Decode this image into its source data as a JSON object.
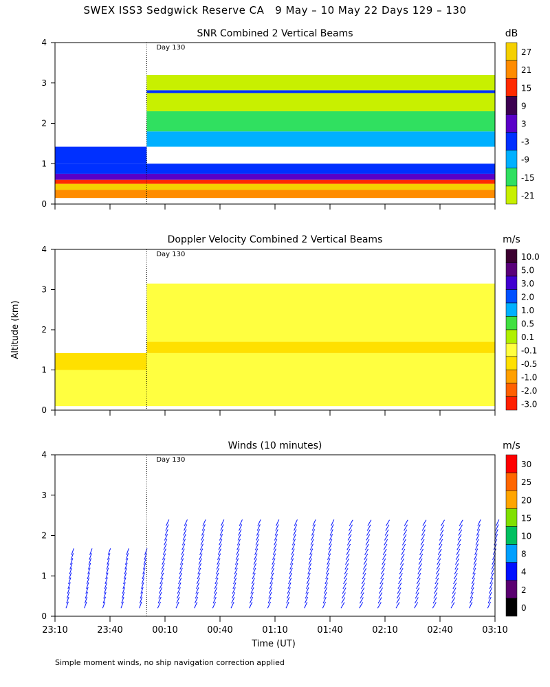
{
  "figure_title": "SWEX ISS3 Sedgwick Reserve CA   9 May – 10 May 22 Days 129 – 130",
  "footnote": "Simple moment winds, no ship navigation correction applied",
  "y_axis_label": "Altitude (km)",
  "x_axis_label": "Time (UT)",
  "chart_data": [
    {
      "type": "heatmap",
      "title": "SNR Combined 2 Vertical Beams",
      "day_label": "Day 130",
      "ylabel": "Altitude (km)",
      "ylim": [
        0,
        4
      ],
      "yticks": [
        "0",
        "1",
        "2",
        "3",
        "4"
      ],
      "xlim_min": [
        0,
        240
      ],
      "x_day_boundary_min": 50,
      "colorbar_unit": "dB",
      "colorbar_labels": [
        "27",
        "21",
        "15",
        "9",
        "3",
        "-3",
        "-9",
        "-15",
        "-21"
      ],
      "colorbar_colors": [
        "#f5d000",
        "#ff8c00",
        "#ff2a00",
        "#3c0050",
        "#5a00c8",
        "#0030ff",
        "#00b0ff",
        "#30e060",
        "#c8f000"
      ],
      "layers": [
        {
          "t_start": 0,
          "t_end": 50,
          "alt_min": 1.0,
          "alt_max": 1.42,
          "value": -5
        },
        {
          "t_start": 0,
          "t_end": 240,
          "alt_min": 0.75,
          "alt_max": 1.0,
          "value": -3
        },
        {
          "t_start": 0,
          "t_end": 240,
          "alt_min": 0.6,
          "alt_max": 0.75,
          "value": 3
        },
        {
          "t_start": 0,
          "t_end": 240,
          "alt_min": 0.5,
          "alt_max": 0.6,
          "value": 15
        },
        {
          "t_start": 0,
          "t_end": 240,
          "alt_min": 0.35,
          "alt_max": 0.5,
          "value": 27
        },
        {
          "t_start": 0,
          "t_end": 240,
          "alt_min": 0.15,
          "alt_max": 0.35,
          "value": 21
        },
        {
          "t_start": 50,
          "t_end": 240,
          "alt_min": 1.42,
          "alt_max": 1.8,
          "value": -9
        },
        {
          "t_start": 50,
          "t_end": 240,
          "alt_min": 1.8,
          "alt_max": 2.3,
          "value": -17
        },
        {
          "t_start": 50,
          "t_end": 240,
          "alt_min": 2.3,
          "alt_max": 2.75,
          "value": -19
        },
        {
          "t_start": 50,
          "t_end": 240,
          "alt_min": 2.75,
          "alt_max": 2.82,
          "value": -3
        },
        {
          "t_start": 50,
          "t_end": 240,
          "alt_min": 2.82,
          "alt_max": 3.2,
          "value": -19
        }
      ]
    },
    {
      "type": "heatmap",
      "title": "Doppler Velocity Combined 2 Vertical Beams",
      "day_label": "Day 130",
      "ylabel": "Altitude (km)",
      "ylim": [
        0,
        4
      ],
      "yticks": [
        "0",
        "1",
        "2",
        "3",
        "4"
      ],
      "xlim_min": [
        0,
        240
      ],
      "x_day_boundary_min": 50,
      "colorbar_unit": "m/s",
      "colorbar_labels": [
        "10.0",
        "5.0",
        "3.0",
        "2.0",
        "1.0",
        "0.5",
        "0.1",
        "-0.1",
        "-0.5",
        "-1.0",
        "-2.0",
        "-3.0"
      ],
      "colorbar_colors": [
        "#3c0030",
        "#5a007a",
        "#4000d0",
        "#0050ff",
        "#00b0ff",
        "#40e040",
        "#b0f000",
        "#ffff40",
        "#ffe000",
        "#ffa000",
        "#ff6000",
        "#ff2000"
      ],
      "layers": [
        {
          "t_start": 0,
          "t_end": 240,
          "alt_min": 0.1,
          "alt_max": 1.42,
          "value": -0.1
        },
        {
          "t_start": 0,
          "t_end": 50,
          "alt_min": 1.0,
          "alt_max": 1.42,
          "value": -0.7
        },
        {
          "t_start": 50,
          "t_end": 240,
          "alt_min": 1.42,
          "alt_max": 1.7,
          "value": -0.5
        },
        {
          "t_start": 50,
          "t_end": 240,
          "alt_min": 1.7,
          "alt_max": 3.15,
          "value": -0.1
        }
      ]
    },
    {
      "type": "wind_barbs",
      "title": "Winds (10 minutes)",
      "day_label": "Day 130",
      "ylabel": "Altitude (km)",
      "xlabel": "Time (UT)",
      "ylim": [
        0,
        4
      ],
      "yticks": [
        "0",
        "1",
        "2",
        "3",
        "4"
      ],
      "xlim_min": [
        0,
        240
      ],
      "x_day_boundary_min": 50,
      "xticks": [
        "23:10",
        "23:40",
        "00:10",
        "00:40",
        "01:10",
        "01:40",
        "02:10",
        "02:40",
        "03:10"
      ],
      "colorbar_unit": "m/s",
      "colorbar_labels": [
        "30",
        "25",
        "20",
        "15",
        "10",
        "8",
        "4",
        "2",
        "0"
      ],
      "colorbar_colors": [
        "#ff0000",
        "#ff6600",
        "#ffa500",
        "#80e000",
        "#00c060",
        "#00a0ff",
        "#0010ff",
        "#5a0070",
        "#000000"
      ],
      "profiles": [
        {
          "t": 6,
          "top_km": 1.6,
          "dir_deg": 200,
          "speed_ms": 4
        },
        {
          "t": 16,
          "top_km": 1.6,
          "dir_deg": 200,
          "speed_ms": 4
        },
        {
          "t": 26,
          "top_km": 1.6,
          "dir_deg": 200,
          "speed_ms": 4
        },
        {
          "t": 36,
          "top_km": 1.6,
          "dir_deg": 200,
          "speed_ms": 4
        },
        {
          "t": 46,
          "top_km": 1.6,
          "dir_deg": 200,
          "speed_ms": 4
        },
        {
          "t": 56,
          "top_km": 2.3,
          "dir_deg": 205,
          "speed_ms": 5
        },
        {
          "t": 66,
          "top_km": 2.3,
          "dir_deg": 205,
          "speed_ms": 5
        },
        {
          "t": 76,
          "top_km": 2.3,
          "dir_deg": 205,
          "speed_ms": 5
        },
        {
          "t": 86,
          "top_km": 2.3,
          "dir_deg": 205,
          "speed_ms": 5
        },
        {
          "t": 96,
          "top_km": 2.3,
          "dir_deg": 205,
          "speed_ms": 5
        },
        {
          "t": 106,
          "top_km": 2.3,
          "dir_deg": 205,
          "speed_ms": 5
        },
        {
          "t": 116,
          "top_km": 2.3,
          "dir_deg": 205,
          "speed_ms": 5
        },
        {
          "t": 126,
          "top_km": 2.3,
          "dir_deg": 205,
          "speed_ms": 5
        },
        {
          "t": 136,
          "top_km": 2.3,
          "dir_deg": 205,
          "speed_ms": 5
        },
        {
          "t": 146,
          "top_km": 2.3,
          "dir_deg": 205,
          "speed_ms": 5
        },
        {
          "t": 156,
          "top_km": 2.3,
          "dir_deg": 210,
          "speed_ms": 4
        },
        {
          "t": 166,
          "top_km": 2.3,
          "dir_deg": 210,
          "speed_ms": 4
        },
        {
          "t": 176,
          "top_km": 2.3,
          "dir_deg": 210,
          "speed_ms": 4
        },
        {
          "t": 186,
          "top_km": 2.3,
          "dir_deg": 210,
          "speed_ms": 4
        },
        {
          "t": 196,
          "top_km": 2.3,
          "dir_deg": 210,
          "speed_ms": 4
        },
        {
          "t": 206,
          "top_km": 2.3,
          "dir_deg": 210,
          "speed_ms": 4
        },
        {
          "t": 216,
          "top_km": 2.3,
          "dir_deg": 210,
          "speed_ms": 4
        },
        {
          "t": 226,
          "top_km": 2.3,
          "dir_deg": 205,
          "speed_ms": 5
        },
        {
          "t": 236,
          "top_km": 2.3,
          "dir_deg": 205,
          "speed_ms": 5
        }
      ]
    }
  ]
}
